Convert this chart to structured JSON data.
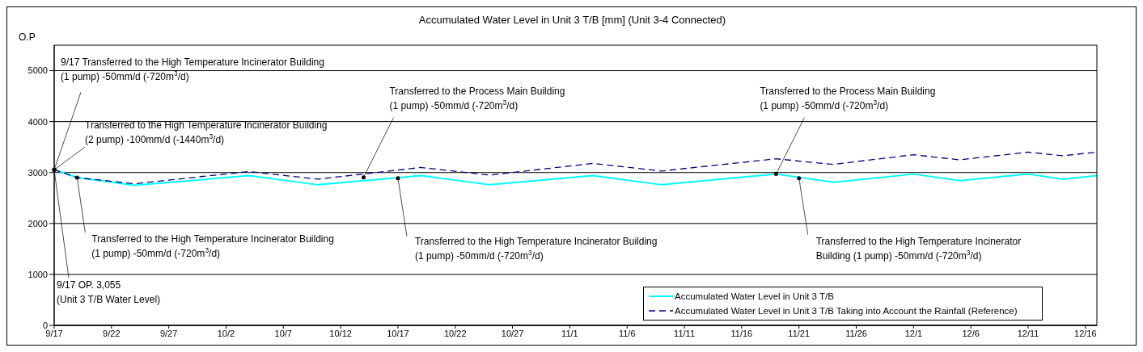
{
  "chart_data": {
    "type": "line",
    "title": "Accumulated Water Level in Unit 3 T/B [mm] (Unit 3-4 Connected)",
    "ylabel": "O.P",
    "series": [
      {
        "name": "Accumulated Water Level in Unit 3 T/B",
        "color": "#00ffff",
        "line_style": "solid",
        "x": [
          "--09-17",
          "--09-19",
          "--09-24",
          "--10-04",
          "--10-10",
          "--10-19",
          "--10-25",
          "--11-03",
          "--11-09",
          "--11-19",
          "--11-24",
          "--12-01",
          "--12-05",
          "--12-11",
          "--12-14",
          "--12-17"
        ],
        "values": [
          3055,
          2900,
          2750,
          2940,
          2760,
          2940,
          2760,
          2940,
          2760,
          2970,
          2810,
          2970,
          2840,
          2970,
          2870,
          2940
        ]
      },
      {
        "name": "Accumulated Water Level in Unit 3 T/B Taking into Account the Rainfall (Reference)",
        "color": "#000080",
        "line_style": "dashed",
        "x": [
          "--09-17",
          "--09-19",
          "--09-24",
          "--10-04",
          "--10-10",
          "--10-19",
          "--10-25",
          "--11-03",
          "--11-09",
          "--11-19",
          "--11-24",
          "--12-01",
          "--12-05",
          "--12-11",
          "--12-14",
          "--12-17"
        ],
        "values": [
          3055,
          2900,
          2780,
          3020,
          2870,
          3100,
          2950,
          3180,
          3030,
          3270,
          3160,
          3350,
          3250,
          3400,
          3330,
          3400
        ]
      }
    ],
    "xlim": [
      "--09-17",
      "--12-17"
    ],
    "xticks": [
      {
        "value": "--09-17",
        "label": "9/17"
      },
      {
        "value": "--09-22",
        "label": "9/22"
      },
      {
        "value": "--09-27",
        "label": "9/27"
      },
      {
        "value": "--10-02",
        "label": "10/2"
      },
      {
        "value": "--10-07",
        "label": "10/7"
      },
      {
        "value": "--10-12",
        "label": "10/12"
      },
      {
        "value": "--10-17",
        "label": "10/17"
      },
      {
        "value": "--10-22",
        "label": "10/22"
      },
      {
        "value": "--10-27",
        "label": "10/27"
      },
      {
        "value": "--11-01",
        "label": "11/1"
      },
      {
        "value": "--11-06",
        "label": "11/6"
      },
      {
        "value": "--11-11",
        "label": "11/11"
      },
      {
        "value": "--11-16",
        "label": "11/16"
      },
      {
        "value": "--11-21",
        "label": "11/21"
      },
      {
        "value": "--11-26",
        "label": "11/26"
      },
      {
        "value": "--12-01",
        "label": "12/1"
      },
      {
        "value": "--12-06",
        "label": "12/6"
      },
      {
        "value": "--12-11",
        "label": "12/11"
      },
      {
        "value": "--12-16",
        "label": "12/16"
      }
    ],
    "ylim": [
      0,
      5500
    ],
    "yticks": [
      0,
      1000,
      2000,
      3000,
      4000,
      5000
    ],
    "grid": "y",
    "legend": "bottom right",
    "marker": "none",
    "annotations": [
      {
        "text": "9/17 Transferred to the High Temperature Incinerator Building\n(1 pump) -50mm/d (-720m$^{3}$/d)",
        "x": "--09-17",
        "y": 3055
      },
      {
        "text": "Transferred to the High Temperature Incinerator Building\n(2 pump) -100mm/d (-1440m$^{3}$/d)",
        "x": "--09-17",
        "y": 3055
      },
      {
        "text": "Transferred to the High Temperature Incinerator Building\n(1 pump) -50mm/d (-720m$^{3}$/d)",
        "x": "--09-19",
        "y": 2900
      },
      {
        "text": "Transferred to the Process Main Building\n(1 pump) -50mm/d (-720m$^{3}$/d)",
        "x": "--10-14",
        "y": 2905
      },
      {
        "text": "Transferred to the High Temperature Incinerator Building\n(1 pump) -50mm/d (-720m$^{3}$/d)",
        "x": "--10-17",
        "y": 2890
      },
      {
        "text": "Transferred to the Process Main Building\n(1 pump) -50mm/d (-720m$^{3}$/d)",
        "x": "--11-19",
        "y": 2970
      },
      {
        "text": "Transferred to the High Temperature Incinerator\nBuilding (1 pump) -50mm/d (-720m$^{3}$/d)",
        "x": "--11-21",
        "y": 2890
      },
      {
        "text": "9/17 OP. 3,055\n(Unit 3 T/B Water Level)",
        "x": "--09-17",
        "y": 3055
      }
    ]
  }
}
